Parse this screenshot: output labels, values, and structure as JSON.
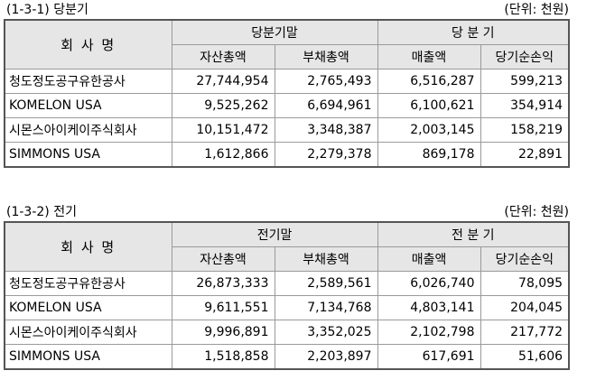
{
  "sections": [
    {
      "caption": "(1-3-1) 당분기",
      "unit": "(단위: 천원)",
      "company_header": "회  사  명",
      "group1_header": "당분기말",
      "group2_header": "당  분  기",
      "columns": [
        "자산총액",
        "부채총액",
        "매출액",
        "당기순손익"
      ],
      "rows": [
        {
          "name": "청도정도공구유한공사",
          "values": [
            "27,744,954",
            "2,765,493",
            "6,516,287",
            "599,213"
          ]
        },
        {
          "name": "KOMELON USA",
          "values": [
            "9,525,262",
            "6,694,961",
            "6,100,621",
            "354,914"
          ]
        },
        {
          "name": "시몬스아이케이주식회사",
          "values": [
            "10,151,472",
            "3,348,387",
            "2,003,145",
            "158,219"
          ]
        },
        {
          "name": "SIMMONS USA",
          "values": [
            "1,612,866",
            "2,279,378",
            "869,178",
            "22,891"
          ]
        }
      ]
    },
    {
      "caption": "(1-3-2) 전기",
      "unit": "(단위: 천원)",
      "company_header": "회  사  명",
      "group1_header": "전기말",
      "group2_header": "전  분  기",
      "columns": [
        "자산총액",
        "부채총액",
        "매출액",
        "당기순손익"
      ],
      "rows": [
        {
          "name": "청도정도공구유한공사",
          "values": [
            "26,873,333",
            "2,589,561",
            "6,026,740",
            "78,095"
          ]
        },
        {
          "name": "KOMELON USA",
          "values": [
            "9,611,551",
            "7,134,768",
            "4,803,141",
            "204,045"
          ]
        },
        {
          "name": "시몬스아이케이주식회사",
          "values": [
            "9,996,891",
            "3,352,025",
            "2,102,798",
            "217,772"
          ]
        },
        {
          "name": "SIMMONS USA",
          "values": [
            "1,518,858",
            "2,203,897",
            "617,691",
            "51,606"
          ]
        }
      ]
    }
  ]
}
